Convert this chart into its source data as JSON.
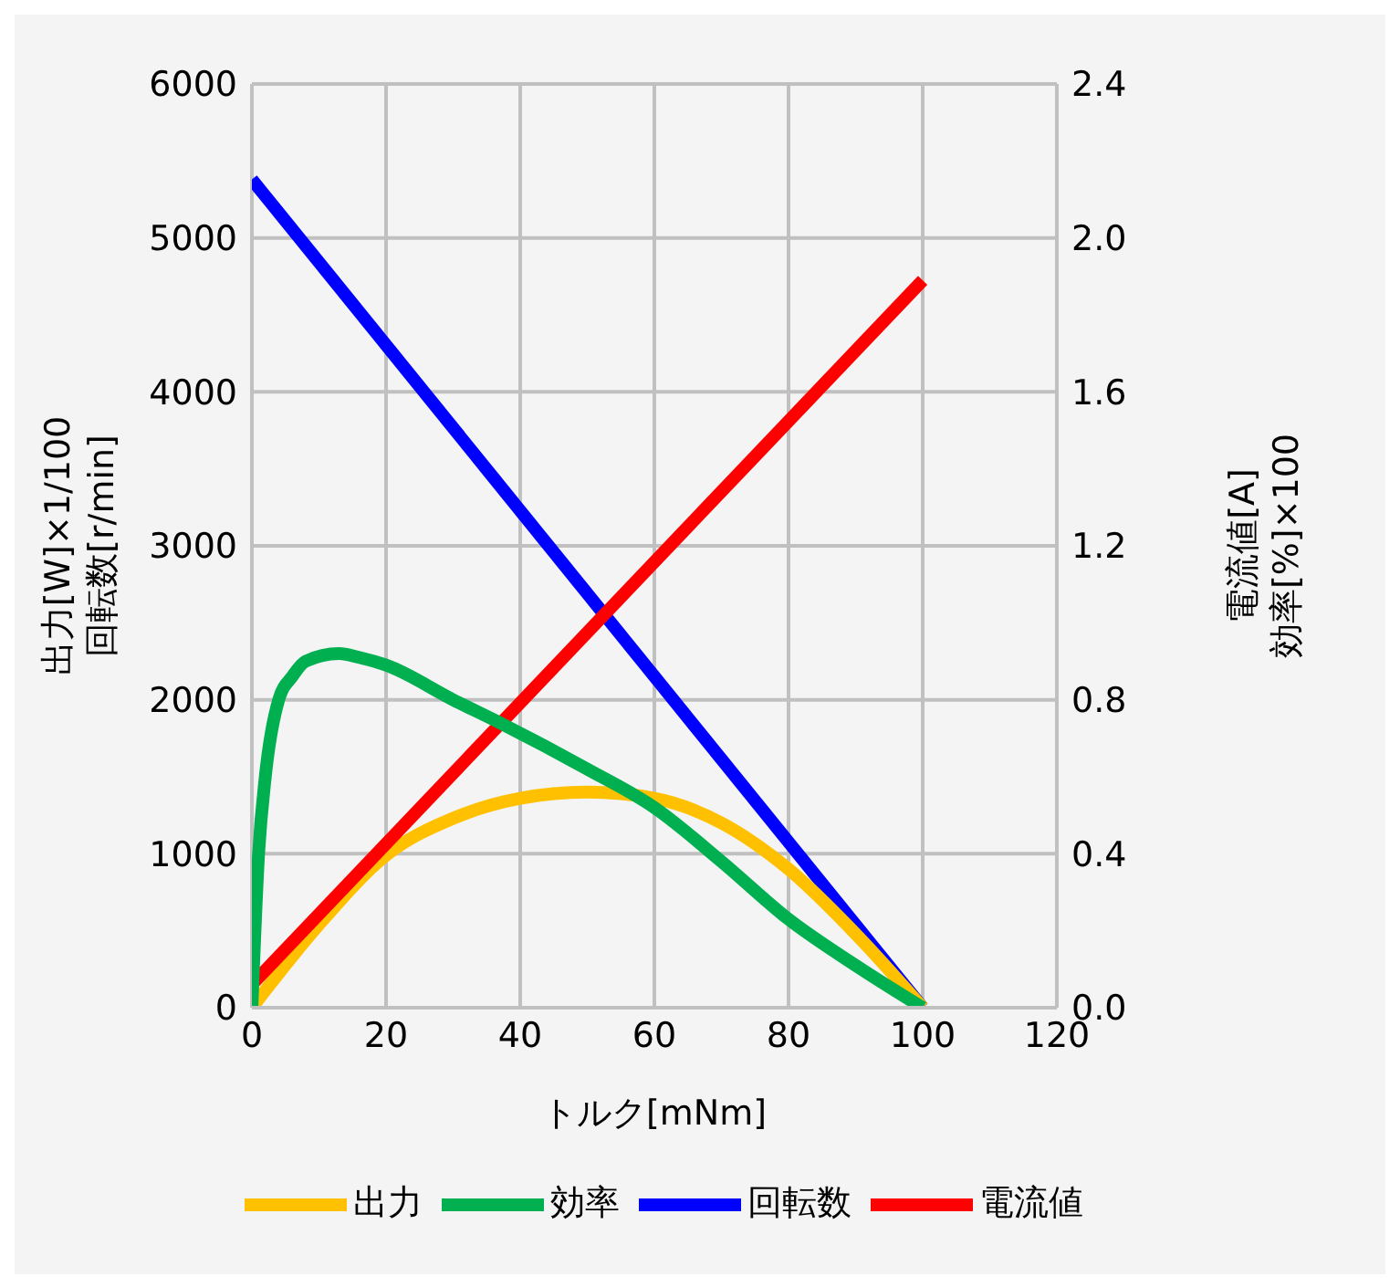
{
  "chart_data": {
    "type": "line",
    "xlabel": "トルク[mNm]",
    "ylabel": "出力[W]×1/100\n回転数[r/min]",
    "y2label": "電流値[A]\n効率[%]×100",
    "xlim": [
      0,
      120
    ],
    "xticks": [
      0,
      20,
      40,
      60,
      80,
      100,
      120
    ],
    "ylim": [
      0,
      6000
    ],
    "yticks": [
      0,
      1000,
      2000,
      3000,
      4000,
      5000,
      6000
    ],
    "y2lim": [
      0,
      2.4
    ],
    "y2ticks": [
      {
        "value": 0,
        "label": "0.0"
      },
      0.4,
      0.8,
      1.2,
      1.6,
      {
        "value": 2,
        "label": "2.0"
      },
      2.4
    ],
    "grid": true,
    "legend": "bottom",
    "marker": "none",
    "line_style": "solid",
    "series": [
      {
        "name": "回転数",
        "color": "#0000ff",
        "x": [
          0,
          100
        ],
        "values": [
          5380,
          0
        ]
      },
      {
        "name": "出力",
        "color": "#ffc000",
        "x": [
          0,
          10,
          20,
          30,
          40,
          50,
          60,
          70,
          80,
          90,
          100
        ],
        "values": [
          0,
          540,
          990,
          1230,
          1360,
          1400,
          1360,
          1200,
          900,
          480,
          0
        ]
      },
      {
        "name": "電流値",
        "color": "#ff0000",
        "axis": "y2",
        "x": [
          0,
          100
        ],
        "values": [
          0.06,
          1.89
        ]
      },
      {
        "name": "効率",
        "color": "#00b050",
        "axis": "y2",
        "x": [
          0,
          1,
          2,
          4,
          6,
          8,
          13,
          16,
          20,
          30,
          37,
          50,
          60,
          70,
          80,
          90,
          100
        ],
        "values": [
          0,
          0.4,
          0.6,
          0.8,
          0.86,
          0.9,
          0.92,
          0.91,
          0.89,
          0.8,
          0.74,
          0.62,
          0.52,
          0.38,
          0.23,
          0.11,
          0
        ]
      }
    ]
  }
}
